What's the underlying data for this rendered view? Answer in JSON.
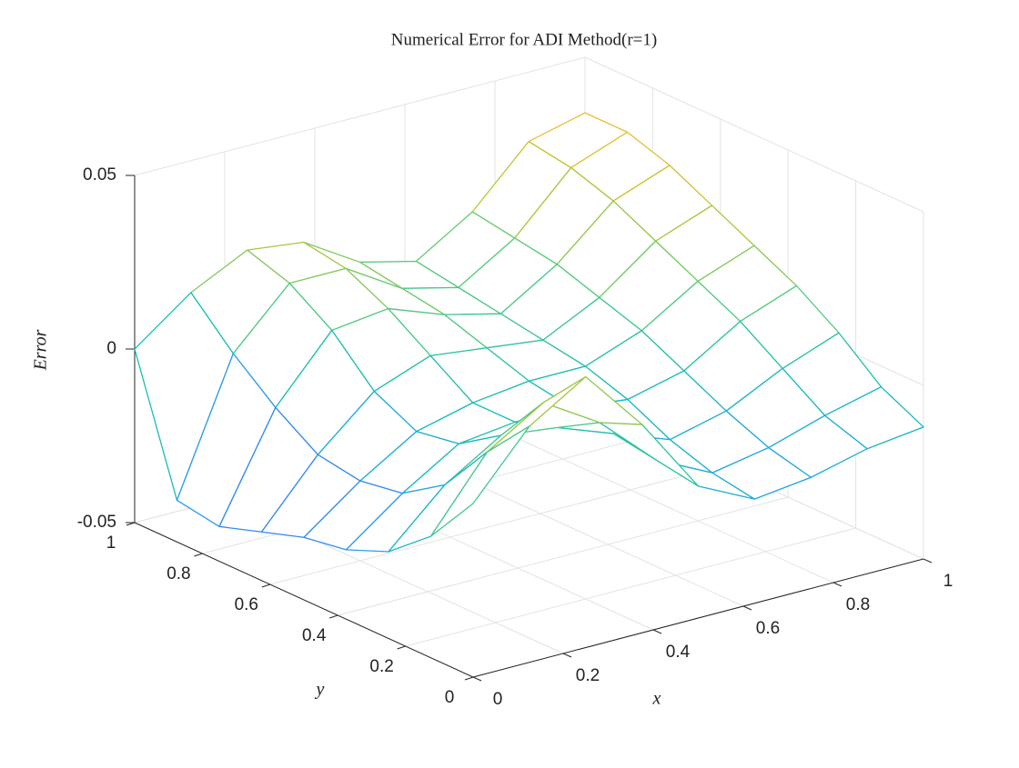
{
  "chart_data": {
    "type": "surface",
    "title": "Numerical Error for ADI Method(r=1)",
    "xlabel": "x",
    "ylabel": "y",
    "zlabel": "Error",
    "x": [
      0,
      0.125,
      0.25,
      0.375,
      0.5,
      0.625,
      0.75,
      0.875,
      1
    ],
    "y": [
      0,
      0.125,
      0.25,
      0.375,
      0.5,
      0.625,
      0.75,
      0.875,
      1
    ],
    "z": [
      [
        0.0,
        0.018,
        0.028,
        0.01,
        -0.012,
        -0.02,
        -0.018,
        -0.014,
        -0.012
      ],
      [
        -0.015,
        0.005,
        0.015,
        0.005,
        -0.01,
        -0.018,
        -0.015,
        -0.01,
        -0.006
      ],
      [
        -0.025,
        -0.01,
        0.0,
        -0.002,
        -0.008,
        -0.014,
        -0.01,
        -0.002,
        0.004
      ],
      [
        -0.03,
        -0.018,
        -0.008,
        -0.006,
        -0.006,
        -0.008,
        -0.004,
        0.006,
        0.012
      ],
      [
        -0.032,
        -0.02,
        -0.01,
        -0.006,
        -0.004,
        -0.004,
        0.002,
        0.012,
        0.018
      ],
      [
        -0.036,
        -0.018,
        -0.004,
        0.002,
        0.0,
        -0.002,
        0.006,
        0.018,
        0.024
      ],
      [
        -0.04,
        -0.01,
        0.008,
        0.01,
        0.004,
        0.0,
        0.01,
        0.024,
        0.03
      ],
      [
        -0.038,
        0.0,
        0.016,
        0.016,
        0.006,
        0.002,
        0.012,
        0.028,
        0.034
      ],
      [
        0.0,
        0.012,
        0.02,
        0.018,
        0.008,
        0.004,
        0.014,
        0.03,
        0.034
      ]
    ],
    "xlim": [
      0,
      1
    ],
    "ylim": [
      0,
      1
    ],
    "zlim": [
      -0.05,
      0.05
    ],
    "xticks": [
      0,
      0.2,
      0.4,
      0.6,
      0.8,
      1
    ],
    "yticks": [
      0,
      0.2,
      0.4,
      0.6,
      0.8,
      1
    ],
    "zticks": [
      -0.05,
      0,
      0.05
    ],
    "grid": true,
    "colormap": [
      "#3e26a8",
      "#4365fa",
      "#2b9cf0",
      "#13bcbc",
      "#5fcc74",
      "#c3c32c",
      "#fdba38",
      "#f9fb15"
    ]
  }
}
